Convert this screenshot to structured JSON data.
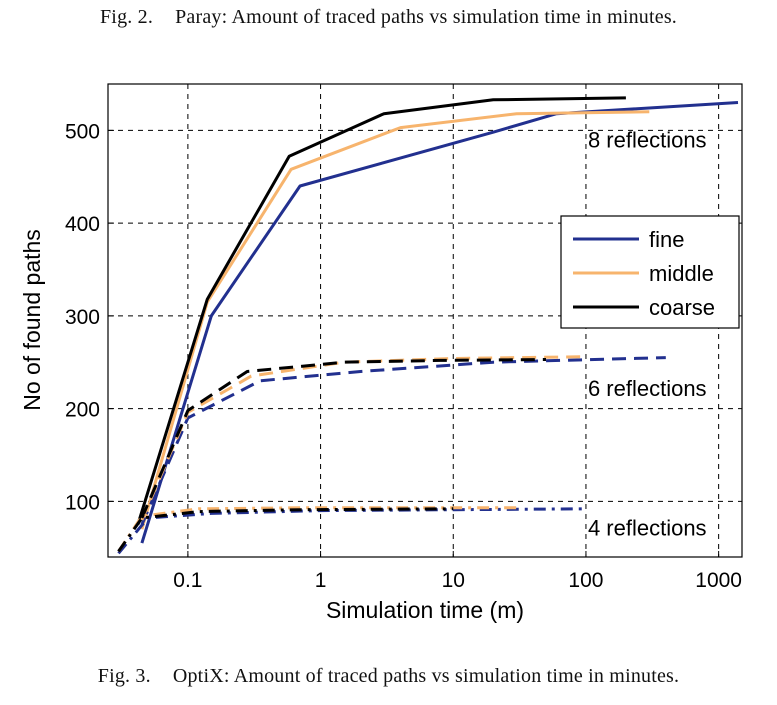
{
  "captions": {
    "top": {
      "num": "Fig. 2.",
      "text": "Paray: Amount of traced paths vs simulation time in minutes."
    },
    "bottom": {
      "num": "Fig. 3.",
      "text": "OptiX: Amount of traced paths vs simulation time in minutes."
    }
  },
  "colors": {
    "fine": "#22308f",
    "middle": "#f7b46d",
    "coarse": "#000000"
  },
  "chart_data": {
    "type": "line",
    "xlabel": "Simulation time (m)",
    "ylabel": "No of found paths",
    "xscale": "log",
    "xlim": [
      0.025,
      1500
    ],
    "ylim": [
      40,
      550
    ],
    "xticks": [
      0.1,
      1,
      10,
      100,
      1000
    ],
    "xtick_labels": [
      "0.1",
      "1",
      "10",
      "100",
      "1000"
    ],
    "yticks": [
      100,
      200,
      300,
      400,
      500
    ],
    "ytick_labels": [
      "100",
      "200",
      "300",
      "400",
      "500"
    ],
    "grid": true,
    "legend": {
      "position": "right",
      "entries": [
        "fine",
        "middle",
        "coarse"
      ]
    },
    "annotations": [
      {
        "text": "8 reflections",
        "x": 100,
        "y": 490
      },
      {
        "text": "6 reflections",
        "x": 100,
        "y": 222
      },
      {
        "text": "4 reflections",
        "x": 100,
        "y": 72
      }
    ],
    "series": [
      {
        "name": "fine",
        "group": "8 reflections",
        "style": "solid",
        "color": "fine",
        "x": [
          0.045,
          0.15,
          0.7,
          20,
          60,
          1400
        ],
        "y": [
          55,
          300,
          440,
          498,
          518,
          530
        ]
      },
      {
        "name": "middle",
        "group": "8 reflections",
        "style": "solid",
        "color": "middle",
        "x": [
          0.045,
          0.14,
          0.6,
          4,
          30,
          300
        ],
        "y": [
          70,
          315,
          458,
          503,
          518,
          520
        ]
      },
      {
        "name": "coarse",
        "group": "8 reflections",
        "style": "solid",
        "color": "coarse",
        "x": [
          0.042,
          0.14,
          0.58,
          3,
          20,
          200
        ],
        "y": [
          75,
          318,
          472,
          518,
          533,
          535
        ]
      },
      {
        "name": "fine",
        "group": "6 reflections",
        "style": "dash",
        "color": "fine",
        "x": [
          0.045,
          0.1,
          0.35,
          2,
          20,
          400
        ],
        "y": [
          75,
          190,
          230,
          240,
          250,
          255
        ]
      },
      {
        "name": "middle",
        "group": "6 reflections",
        "style": "dash",
        "color": "middle",
        "x": [
          0.045,
          0.1,
          0.3,
          1.5,
          10,
          100
        ],
        "y": [
          80,
          196,
          235,
          250,
          254,
          256
        ]
      },
      {
        "name": "coarse",
        "group": "6 reflections",
        "style": "dash",
        "color": "coarse",
        "x": [
          0.045,
          0.1,
          0.28,
          1.5,
          8,
          50
        ],
        "y": [
          82,
          198,
          240,
          250,
          252,
          253
        ]
      },
      {
        "name": "fine",
        "group": "4 reflections",
        "style": "dashdot",
        "color": "fine",
        "x": [
          0.03,
          0.05,
          0.15,
          1,
          100
        ],
        "y": [
          44,
          82,
          87,
          90,
          92
        ]
      },
      {
        "name": "middle",
        "group": "4 reflections",
        "style": "dashdot",
        "color": "middle",
        "x": [
          0.03,
          0.045,
          0.12,
          0.7,
          30
        ],
        "y": [
          46,
          84,
          92,
          93,
          93
        ]
      },
      {
        "name": "coarse",
        "group": "4 reflections",
        "style": "dashdot",
        "color": "coarse",
        "x": [
          0.03,
          0.045,
          0.12,
          0.7,
          10
        ],
        "y": [
          46,
          82,
          89,
          91,
          92
        ]
      }
    ]
  }
}
